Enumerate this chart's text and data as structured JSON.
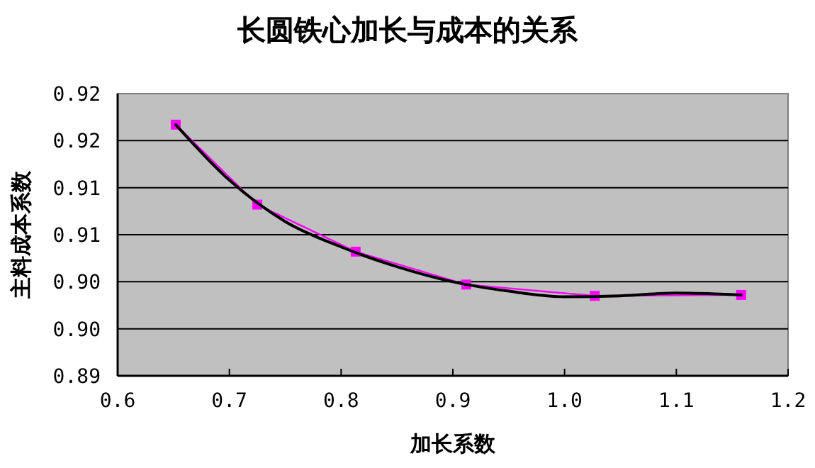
{
  "chart_data": {
    "type": "line",
    "title": "长圆铁心加长与成本的关系",
    "xlabel": "加长系数",
    "ylabel": "主料成本系数",
    "xlim": [
      0.6,
      1.2
    ],
    "xticks": [
      {
        "value": 0.6,
        "label": "0.6"
      },
      {
        "value": 0.7,
        "label": "0.7"
      },
      {
        "value": 0.8,
        "label": "0.8"
      },
      {
        "value": 0.9,
        "label": "0.9"
      },
      {
        "value": 1.0,
        "label": "1.0"
      },
      {
        "value": 1.1,
        "label": "1.1"
      },
      {
        "value": 1.2,
        "label": "1.2"
      }
    ],
    "ylim": [
      0.89,
      0.92
    ],
    "yticks": [
      {
        "value": 0.89,
        "label": "0.89"
      },
      {
        "value": 0.895,
        "label": "0.90"
      },
      {
        "value": 0.9,
        "label": "0.90"
      },
      {
        "value": 0.905,
        "label": "0.91"
      },
      {
        "value": 0.91,
        "label": "0.91"
      },
      {
        "value": 0.915,
        "label": "0.92"
      },
      {
        "value": 0.92,
        "label": "0.92"
      }
    ],
    "grid": "y",
    "series": [
      {
        "color": "#ff00ff",
        "marker": "square",
        "x": [
          0.652,
          0.725,
          0.813,
          0.912,
          1.027,
          1.158
        ],
        "values": [
          0.9167,
          0.9082,
          0.9032,
          0.8997,
          0.8985,
          0.8986
        ]
      },
      {
        "type": "line",
        "color": "#000000",
        "marker": "none",
        "x": [
          0.652,
          0.7,
          0.75,
          0.8,
          0.85,
          0.9,
          0.95,
          1.0,
          1.05,
          1.1,
          1.158
        ],
        "values": [
          0.9167,
          0.9108,
          0.9064,
          0.9037,
          0.9016,
          0.9,
          0.899,
          0.8984,
          0.8985,
          0.8988,
          0.8986
        ]
      }
    ]
  }
}
